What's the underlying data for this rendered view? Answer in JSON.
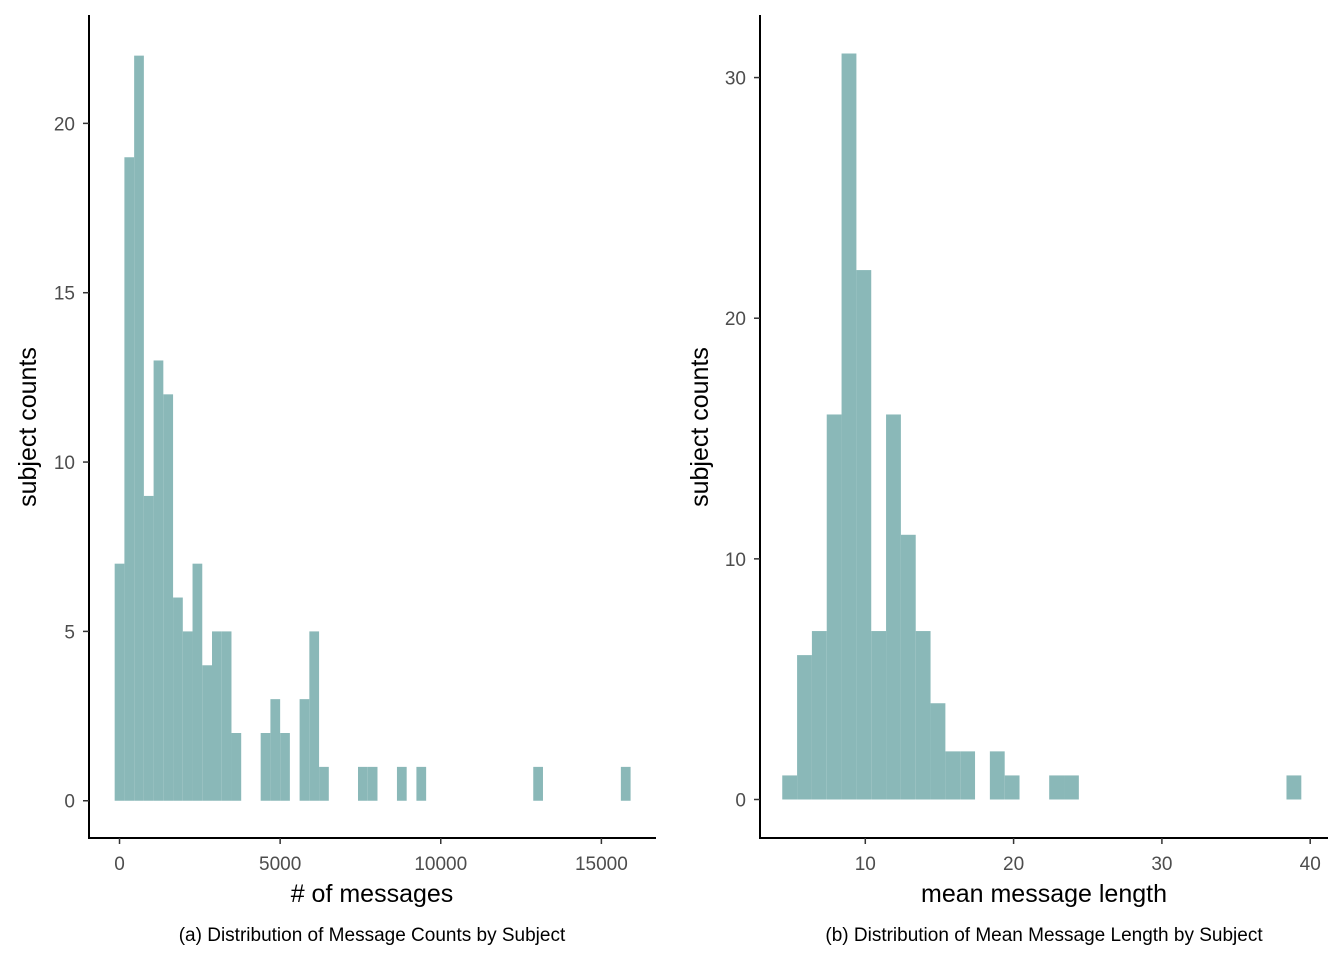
{
  "chart_data": [
    {
      "type": "bar",
      "subtype": "histogram",
      "xlabel": "# of messages",
      "ylabel": "subject counts",
      "caption": "(a) Distribution of Message Counts by Subject",
      "xlim": [
        -950,
        16700
      ],
      "ylim": [
        -1.1,
        23.2
      ],
      "xticks": [
        0,
        5000,
        10000,
        15000
      ],
      "yticks": [
        0,
        5,
        10,
        15,
        20
      ],
      "bin_width": 303,
      "bin_starts": [
        -151,
        152,
        455,
        758,
        1061,
        1364,
        1667,
        1970,
        2273,
        2576,
        2879,
        3182,
        3485,
        4394,
        4697,
        5000,
        5303,
        5606,
        5909,
        6212,
        6515,
        7424,
        7727,
        8636,
        9242,
        12879,
        15606
      ],
      "values": [
        7,
        19,
        22,
        9,
        13,
        12,
        6,
        5,
        7,
        4,
        5,
        5,
        2,
        2,
        3,
        2,
        0,
        3,
        5,
        1,
        0,
        1,
        1,
        1,
        1,
        1,
        1
      ],
      "bar_color": "#8ab8b8",
      "grid": false
    },
    {
      "type": "bar",
      "subtype": "histogram",
      "xlabel": "mean message length",
      "ylabel": "subject counts",
      "caption": "(b) Distribution of Mean Message Length by Subject",
      "xlim": [
        2.9,
        41.2
      ],
      "ylim": [
        -1.6,
        32.6
      ],
      "xticks": [
        10,
        20,
        30,
        40
      ],
      "yticks": [
        0,
        10,
        20,
        30
      ],
      "bin_width": 1.0,
      "bin_starts": [
        4.4,
        5.4,
        6.4,
        7.4,
        8.4,
        9.4,
        10.4,
        11.4,
        12.4,
        13.4,
        14.4,
        15.4,
        16.4,
        18.4,
        19.4,
        22.4,
        23.4,
        38.4
      ],
      "values": [
        1,
        6,
        7,
        16,
        31,
        22,
        7,
        16,
        11,
        7,
        4,
        2,
        2,
        2,
        1,
        1,
        1,
        1
      ],
      "bar_color": "#8ab8b8",
      "grid": false
    }
  ]
}
